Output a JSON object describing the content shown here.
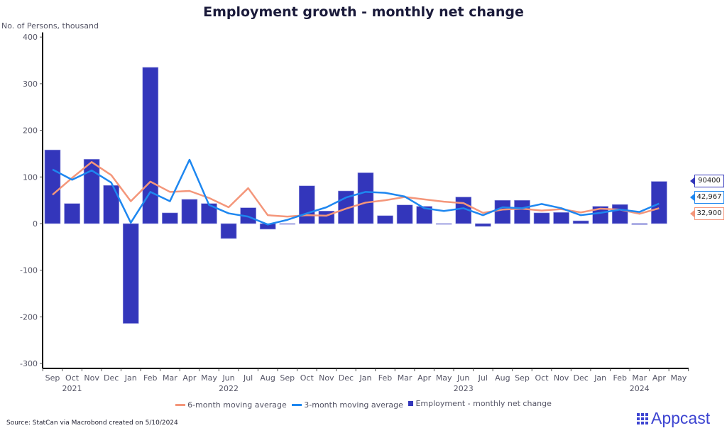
{
  "chart_data": {
    "type": "bar",
    "title": "Employment growth - monthly net change",
    "ylabel": "No. of Persons, thousand",
    "xlabel": "",
    "ylim": [
      -310,
      410
    ],
    "yticks": [
      400,
      300,
      200,
      100,
      0,
      -100,
      -200,
      -300
    ],
    "categories": [
      "Sep",
      "Oct",
      "Nov",
      "Dec",
      "Jan",
      "Feb",
      "Mar",
      "Apr",
      "May",
      "Jun",
      "Jul",
      "Aug",
      "Sep",
      "Oct",
      "Nov",
      "Dec",
      "Jan",
      "Feb",
      "Mar",
      "Apr",
      "May",
      "Jun",
      "Jul",
      "Aug",
      "Sep",
      "Oct",
      "Nov",
      "Dec",
      "Jan",
      "Feb",
      "Mar",
      "Apr",
      "May"
    ],
    "year_labels": [
      {
        "label": "2021",
        "category_index": 1
      },
      {
        "label": "2022",
        "category_index": 9
      },
      {
        "label": "2023",
        "category_index": 21
      },
      {
        "label": "2024",
        "category_index": 30
      }
    ],
    "series": [
      {
        "name": "6-month moving average",
        "type": "line",
        "color": "#f4967a",
        "values": [
          62,
          98,
          132,
          104,
          48,
          90,
          68,
          70,
          55,
          35,
          76,
          18,
          15,
          18,
          17,
          32,
          45,
          50,
          57,
          52,
          47,
          44,
          23,
          30,
          32,
          28,
          31,
          24,
          32,
          30,
          21,
          32.9,
          null
        ]
      },
      {
        "name": "3-month moving average",
        "type": "line",
        "color": "#1e87f0",
        "values": [
          116,
          94,
          114,
          88,
          2,
          68,
          48,
          137,
          40,
          22,
          15,
          -2,
          8,
          22,
          35,
          56,
          68,
          66,
          58,
          33,
          27,
          33,
          18,
          35,
          33,
          42,
          33,
          18,
          23,
          30,
          25,
          42.967,
          null
        ]
      },
      {
        "name": "Employment - monthly net change",
        "type": "bar",
        "color": "#3336bb",
        "values": [
          158,
          43,
          138,
          82,
          -214,
          335,
          23,
          52,
          43,
          -32,
          34,
          -12,
          -1,
          81,
          27,
          70,
          109,
          17,
          40,
          37,
          -1,
          57,
          -6,
          50,
          50,
          23,
          24,
          6,
          37,
          41,
          -2,
          90.4,
          null
        ]
      }
    ],
    "end_labels": [
      {
        "series": "Employment - monthly net change",
        "text": "90400",
        "color": "#3336bb"
      },
      {
        "series": "3-month moving average",
        "text": "42,967",
        "color": "#1e87f0"
      },
      {
        "series": "6-month moving average",
        "text": "32,900",
        "color": "#f4967a"
      }
    ],
    "legend": "bottom-center",
    "grid": false
  },
  "source_text": "Source: StatCan via Macrobond created on 5/10/2024",
  "brand": {
    "name": "Appcast",
    "color": "#3d44d1"
  }
}
